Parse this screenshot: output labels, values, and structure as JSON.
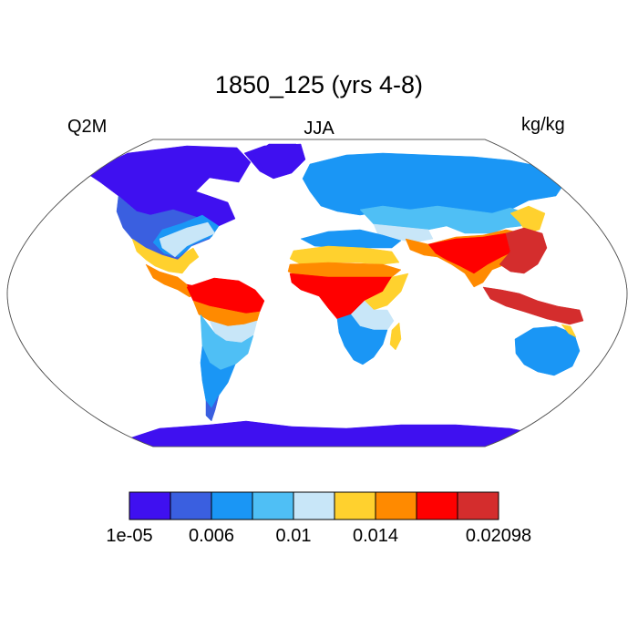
{
  "title": "1850_125 (yrs 4-8)",
  "variable": "Q2M",
  "season": "JJA",
  "units": "kg/kg",
  "colorbar": {
    "colors": [
      "#3f10f0",
      "#3a5fe0",
      "#1a96f5",
      "#4fbff5",
      "#c8e6f8",
      "#ffd12e",
      "#ff8a00",
      "#ff0000",
      "#d42d2d"
    ],
    "tick_labels": [
      "1e-05",
      "0.006",
      "0.01",
      "0.014",
      "0.02098"
    ],
    "tick_bins": [
      0,
      2,
      4,
      6,
      9
    ]
  },
  "map": {
    "projection": "robinson",
    "ocean": "#ffffff",
    "outline": "#000000"
  }
}
